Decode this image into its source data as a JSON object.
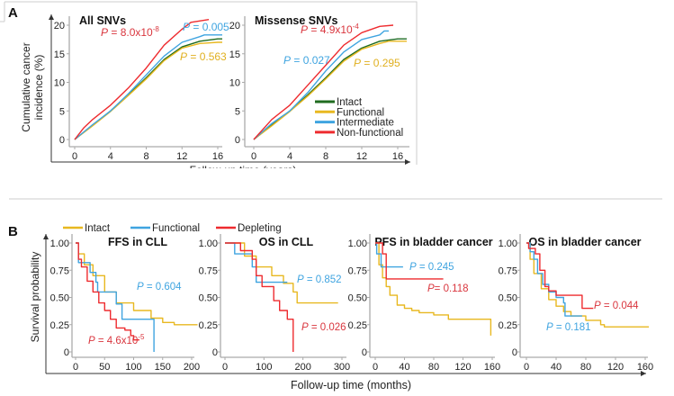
{
  "colors": {
    "intact_green": "#1f6b1f",
    "functional_yellow": "#e8b820",
    "intermediate_blue": "#3fa4e0",
    "red": "#ee2b2f",
    "p_red": "#d9363e",
    "p_blue": "#3fa4e0",
    "p_yellow": "#e0b020"
  },
  "panel_a": {
    "label": "A",
    "ylabel": "Cumulative cancer incidence (%)",
    "xlabel": "Follow-up time (years)",
    "legend": [
      {
        "name": "Intact",
        "color": "#1f6b1f"
      },
      {
        "name": "Functional",
        "color": "#e8b820"
      },
      {
        "name": "Intermediate",
        "color": "#3fa4e0"
      },
      {
        "name": "Non-functional",
        "color": "#ee2b2f"
      }
    ]
  },
  "panel_b": {
    "label": "B",
    "ylabel": "Survival probability",
    "xlabel": "Follow-up time (months)",
    "legend": [
      {
        "name": "Intact",
        "color": "#e8b820"
      },
      {
        "name": "Functional",
        "color": "#3fa4e0"
      },
      {
        "name": "Depleting",
        "color": "#ee2b2f"
      }
    ]
  },
  "chart_data": [
    {
      "type": "line",
      "panel": "A",
      "title": "All SNVs",
      "xlim": [
        0,
        16.5
      ],
      "ylim": [
        0,
        21
      ],
      "xticks": [
        0,
        4,
        8,
        12,
        16
      ],
      "yticks": [
        0,
        5,
        10,
        15,
        20
      ],
      "step": false,
      "series": [
        {
          "name": "Intact",
          "color": "#1f6b1f",
          "points": [
            [
              0,
              0
            ],
            [
              2,
              2.5
            ],
            [
              4,
              5
            ],
            [
              6,
              7.8
            ],
            [
              8,
              10.8
            ],
            [
              10,
              14
            ],
            [
              12,
              16.2
            ],
            [
              14,
              17.2
            ],
            [
              16,
              17.6
            ],
            [
              16.5,
              17.6
            ]
          ]
        },
        {
          "name": "Functional",
          "color": "#e8b820",
          "points": [
            [
              0,
              0
            ],
            [
              2,
              2.4
            ],
            [
              4,
              4.9
            ],
            [
              6,
              7.7
            ],
            [
              8,
              10.6
            ],
            [
              10,
              13.8
            ],
            [
              12,
              16
            ],
            [
              14,
              16.8
            ],
            [
              16,
              17
            ],
            [
              16.5,
              17
            ]
          ]
        },
        {
          "name": "Intermediate",
          "color": "#3fa4e0",
          "points": [
            [
              0,
              0
            ],
            [
              2,
              2.6
            ],
            [
              4,
              5
            ],
            [
              6,
              8
            ],
            [
              8,
              11.3
            ],
            [
              10,
              14.6
            ],
            [
              12,
              17
            ],
            [
              14,
              18
            ],
            [
              14.5,
              18.3
            ],
            [
              16.5,
              18.3
            ]
          ]
        },
        {
          "name": "Non-functional",
          "color": "#ee2b2f",
          "points": [
            [
              0,
              0
            ],
            [
              1,
              2
            ],
            [
              2,
              3.5
            ],
            [
              4,
              6
            ],
            [
              6,
              9
            ],
            [
              8,
              12.5
            ],
            [
              10,
              16.5
            ],
            [
              12,
              19.3
            ],
            [
              13,
              20.5
            ],
            [
              15,
              21
            ]
          ]
        }
      ],
      "annotations": [
        {
          "text": "P = 8.0x10",
          "sup": "-8",
          "color": "#d9363e"
        },
        {
          "text": "P = 0.005",
          "color": "#3fa4e0"
        },
        {
          "text": "P = 0.563",
          "color": "#e0b020"
        }
      ]
    },
    {
      "type": "line",
      "panel": "A",
      "title": "Missense SNVs",
      "xlim": [
        0,
        17
      ],
      "ylim": [
        0,
        21
      ],
      "xticks": [
        0,
        4,
        8,
        12,
        16
      ],
      "yticks": [
        0,
        5,
        10,
        15,
        20
      ],
      "step": false,
      "series": [
        {
          "name": "Intact",
          "color": "#1f6b1f",
          "points": [
            [
              0,
              0
            ],
            [
              2,
              2.5
            ],
            [
              4,
              5
            ],
            [
              6,
              7.8
            ],
            [
              8,
              10.8
            ],
            [
              10,
              14
            ],
            [
              12,
              16
            ],
            [
              14,
              17.2
            ],
            [
              16,
              17.6
            ],
            [
              17,
              17.6
            ]
          ]
        },
        {
          "name": "Functional",
          "color": "#e8b820",
          "points": [
            [
              0,
              0
            ],
            [
              2,
              2.4
            ],
            [
              4,
              4.9
            ],
            [
              6,
              7.6
            ],
            [
              8,
              10.6
            ],
            [
              10,
              13.7
            ],
            [
              12,
              15.8
            ],
            [
              14,
              16.8
            ],
            [
              15,
              17.2
            ],
            [
              17,
              17.2
            ]
          ]
        },
        {
          "name": "Intermediate",
          "color": "#3fa4e0",
          "points": [
            [
              0,
              0
            ],
            [
              2,
              2.8
            ],
            [
              4,
              5
            ],
            [
              6,
              8.2
            ],
            [
              8,
              12
            ],
            [
              10,
              15.3
            ],
            [
              12,
              17.5
            ],
            [
              14,
              18.3
            ],
            [
              14.5,
              19
            ],
            [
              15,
              19
            ]
          ]
        },
        {
          "name": "Non-functional",
          "color": "#ee2b2f",
          "points": [
            [
              0,
              0
            ],
            [
              2,
              3.5
            ],
            [
              4,
              6
            ],
            [
              6,
              9.5
            ],
            [
              8,
              13
            ],
            [
              10,
              16.5
            ],
            [
              12,
              18.7
            ],
            [
              14,
              19.8
            ],
            [
              15.5,
              20
            ]
          ]
        }
      ],
      "annotations": [
        {
          "text": "P = 4.9x10",
          "sup": "-4",
          "color": "#d9363e"
        },
        {
          "text": "P = 0.027",
          "color": "#3fa4e0"
        },
        {
          "text": "P = 0.295",
          "color": "#e0b020"
        }
      ]
    },
    {
      "type": "line",
      "panel": "B",
      "title": "FFS in CLL",
      "xlim": [
        0,
        210
      ],
      "ylim": [
        0,
        1
      ],
      "xticks": [
        0,
        50,
        100,
        150,
        200
      ],
      "yticks": [
        "0",
        "0.25",
        "0.50",
        "0.75",
        "1.00"
      ],
      "step": true,
      "series": [
        {
          "name": "Intact",
          "color": "#e8b820",
          "points": [
            [
              0,
              1
            ],
            [
              5,
              0.9
            ],
            [
              15,
              0.8
            ],
            [
              30,
              0.7
            ],
            [
              50,
              0.55
            ],
            [
              70,
              0.45
            ],
            [
              100,
              0.38
            ],
            [
              130,
              0.31
            ],
            [
              150,
              0.27
            ],
            [
              170,
              0.25
            ],
            [
              210,
              0.25
            ]
          ]
        },
        {
          "name": "Functional",
          "color": "#3fa4e0",
          "points": [
            [
              0,
              1
            ],
            [
              5,
              0.82
            ],
            [
              25,
              0.73
            ],
            [
              35,
              0.64
            ],
            [
              38,
              0.55
            ],
            [
              70,
              0.44
            ],
            [
              80,
              0.3
            ],
            [
              135,
              0.3
            ],
            [
              135,
              0
            ]
          ]
        },
        {
          "name": "Depleting",
          "color": "#ee2b2f",
          "points": [
            [
              0,
              1
            ],
            [
              5,
              0.85
            ],
            [
              10,
              0.78
            ],
            [
              20,
              0.65
            ],
            [
              30,
              0.55
            ],
            [
              40,
              0.45
            ],
            [
              50,
              0.38
            ],
            [
              60,
              0.3
            ],
            [
              70,
              0.22
            ],
            [
              85,
              0.2
            ],
            [
              95,
              0.15
            ],
            [
              100,
              0.11
            ],
            [
              110,
              0.11
            ]
          ]
        }
      ],
      "annotations": [
        {
          "text": "P = 0.604",
          "color": "#3fa4e0"
        },
        {
          "text": "P = 4.6x10",
          "sup": "-5",
          "color": "#d9363e"
        }
      ]
    },
    {
      "type": "line",
      "panel": "B",
      "title": "OS in CLL",
      "xlim": [
        0,
        300
      ],
      "ylim": [
        0,
        1
      ],
      "xticks": [
        0,
        100,
        200,
        300
      ],
      "yticks": [
        "0",
        "0.25",
        "0.50",
        "0.75",
        "1.00"
      ],
      "step": true,
      "series": [
        {
          "name": "Intact",
          "color": "#e8b820",
          "points": [
            [
              0,
              1
            ],
            [
              50,
              0.88
            ],
            [
              80,
              0.78
            ],
            [
              120,
              0.7
            ],
            [
              150,
              0.63
            ],
            [
              175,
              0.55
            ],
            [
              185,
              0.45
            ],
            [
              290,
              0.45
            ]
          ]
        },
        {
          "name": "Functional",
          "color": "#3fa4e0",
          "points": [
            [
              0,
              1
            ],
            [
              25,
              1
            ],
            [
              25,
              0.9
            ],
            [
              70,
              0.9
            ],
            [
              70,
              0.78
            ],
            [
              80,
              0.64
            ],
            [
              160,
              0.64
            ]
          ]
        },
        {
          "name": "Depleting",
          "color": "#ee2b2f",
          "points": [
            [
              0,
              1
            ],
            [
              40,
              0.93
            ],
            [
              70,
              0.85
            ],
            [
              80,
              0.7
            ],
            [
              95,
              0.6
            ],
            [
              125,
              0.47
            ],
            [
              140,
              0.38
            ],
            [
              160,
              0.3
            ],
            [
              175,
              0.3
            ],
            [
              175,
              0
            ]
          ]
        }
      ],
      "annotations": [
        {
          "text": "P = 0.852",
          "color": "#3fa4e0"
        },
        {
          "text": "P = 0.026",
          "color": "#d9363e"
        }
      ]
    },
    {
      "type": "line",
      "panel": "B",
      "title": "PFS in bladder cancer",
      "xlim": [
        0,
        165
      ],
      "ylim": [
        0,
        1
      ],
      "xticks": [
        0,
        40,
        80,
        120,
        160
      ],
      "yticks": [
        "0",
        "0.25",
        "0.50",
        "0.75",
        "1.00"
      ],
      "step": true,
      "series": [
        {
          "name": "Intact",
          "color": "#e8b820",
          "points": [
            [
              0,
              1
            ],
            [
              5,
              0.8
            ],
            [
              10,
              0.68
            ],
            [
              15,
              0.6
            ],
            [
              20,
              0.52
            ],
            [
              30,
              0.43
            ],
            [
              40,
              0.4
            ],
            [
              50,
              0.38
            ],
            [
              60,
              0.36
            ],
            [
              80,
              0.34
            ],
            [
              100,
              0.3
            ],
            [
              158,
              0.3
            ],
            [
              158,
              0.15
            ]
          ]
        },
        {
          "name": "Functional",
          "color": "#3fa4e0",
          "points": [
            [
              0,
              1
            ],
            [
              2,
              0.9
            ],
            [
              8,
              0.9
            ],
            [
              8,
              0.78
            ],
            [
              38,
              0.78
            ]
          ]
        },
        {
          "name": "Depleting",
          "color": "#ee2b2f",
          "points": [
            [
              0,
              1
            ],
            [
              10,
              1
            ],
            [
              10,
              0.9
            ],
            [
              15,
              0.78
            ],
            [
              15,
              0.67
            ],
            [
              93,
              0.67
            ]
          ]
        }
      ],
      "annotations": [
        {
          "text": "P = 0.245",
          "color": "#3fa4e0"
        },
        {
          "text": "P=  0.118",
          "color": "#d9363e"
        }
      ]
    },
    {
      "type": "line",
      "panel": "B",
      "title": "OS in bladder cancer",
      "xlim": [
        0,
        165
      ],
      "ylim": [
        0,
        1
      ],
      "xticks": [
        0,
        40,
        80,
        120,
        160
      ],
      "yticks": [
        "0",
        "0.25",
        "0.50",
        "0.75",
        "1.00"
      ],
      "step": true,
      "series": [
        {
          "name": "Intact",
          "color": "#e8b820",
          "points": [
            [
              0,
              1
            ],
            [
              5,
              0.85
            ],
            [
              10,
              0.72
            ],
            [
              20,
              0.58
            ],
            [
              30,
              0.48
            ],
            [
              40,
              0.42
            ],
            [
              50,
              0.37
            ],
            [
              60,
              0.33
            ],
            [
              80,
              0.29
            ],
            [
              100,
              0.25
            ],
            [
              105,
              0.23
            ],
            [
              165,
              0.23
            ]
          ]
        },
        {
          "name": "Functional",
          "color": "#3fa4e0",
          "points": [
            [
              0,
              1
            ],
            [
              5,
              0.92
            ],
            [
              10,
              0.85
            ],
            [
              15,
              0.72
            ],
            [
              22,
              0.62
            ],
            [
              30,
              0.55
            ],
            [
              40,
              0.5
            ],
            [
              50,
              0.45
            ],
            [
              52,
              0.33
            ],
            [
              75,
              0.33
            ]
          ]
        },
        {
          "name": "Depleting",
          "color": "#ee2b2f",
          "points": [
            [
              0,
              1
            ],
            [
              3,
              0.95
            ],
            [
              12,
              0.9
            ],
            [
              18,
              0.75
            ],
            [
              25,
              0.6
            ],
            [
              30,
              0.56
            ],
            [
              40,
              0.52
            ],
            [
              75,
              0.52
            ],
            [
              75,
              0.4
            ],
            [
              90,
              0.4
            ]
          ]
        }
      ],
      "annotations": [
        {
          "text": "P = 0.044",
          "color": "#d9363e"
        },
        {
          "text": "P = 0.181",
          "color": "#3fa4e0"
        }
      ]
    }
  ]
}
